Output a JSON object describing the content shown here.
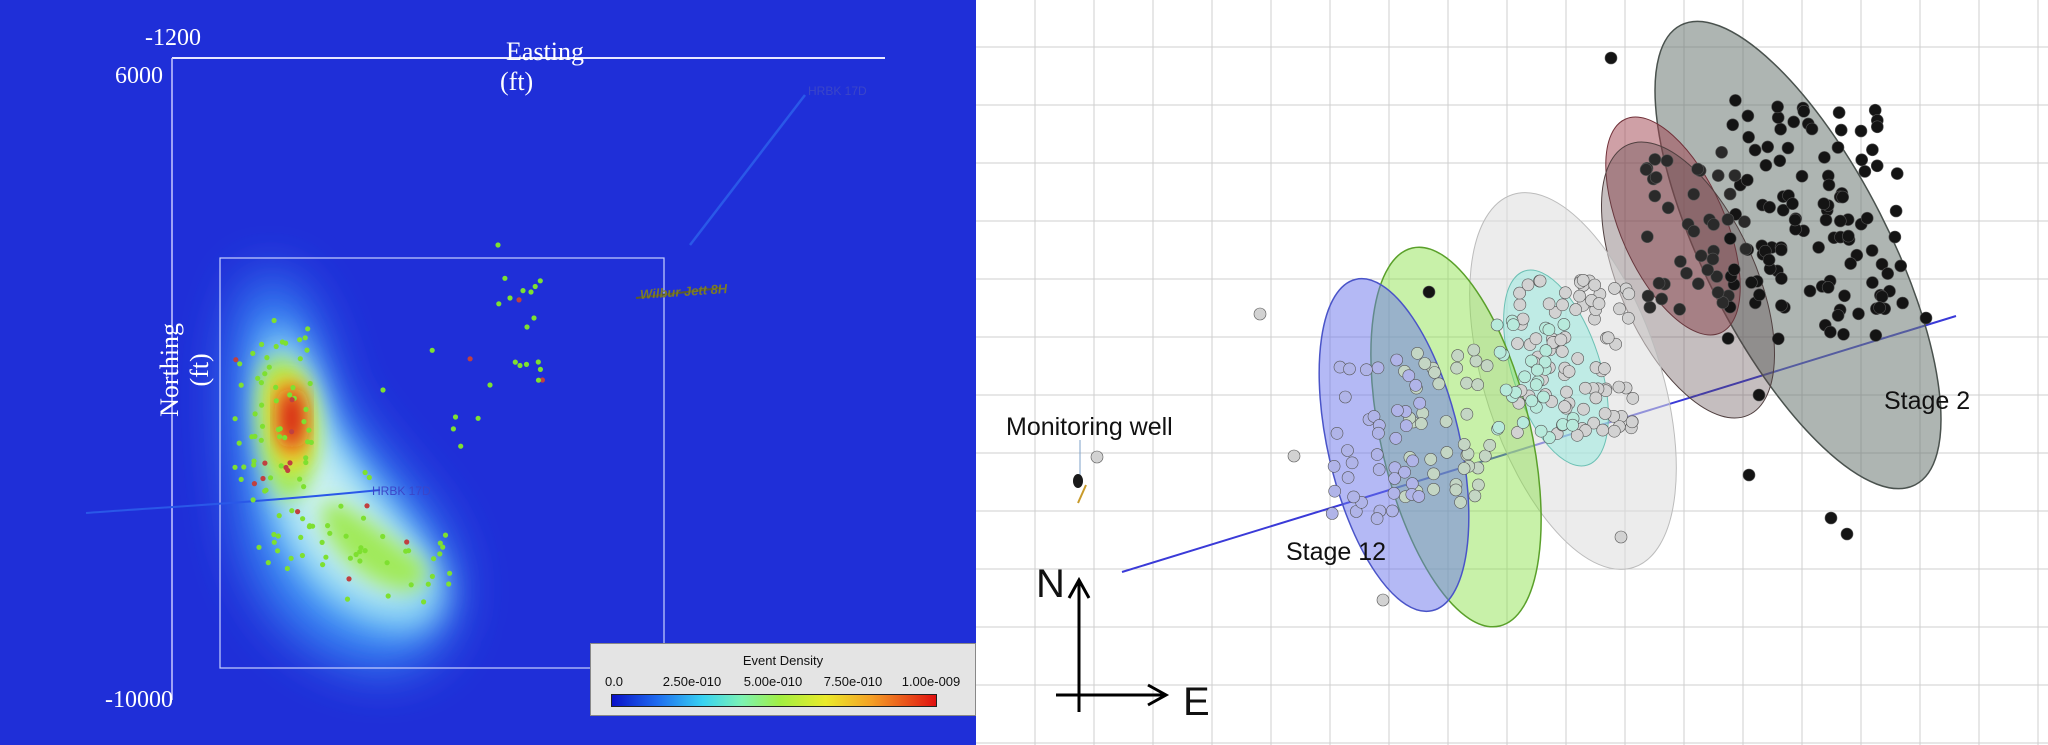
{
  "left_panel": {
    "axes": {
      "easting_min": "-1200",
      "northing_max": "6000",
      "northing_min": "-10000",
      "easting_title_line1": "Easting",
      "easting_title_line2": "(ft)",
      "northing_title_line1": "Northing",
      "northing_title_line2": "(ft)"
    },
    "well_labels": [
      "HRBK 17D",
      "HRBK 17D",
      "Wilbur Jett 8H"
    ],
    "legend": {
      "title": "Event Density",
      "ticks": [
        "0.0",
        "2.50e-010",
        "5.00e-010",
        "7.50e-010",
        "1.00e-009"
      ],
      "colors": [
        "#0a10c8",
        "#1e6cf0",
        "#38d2f2",
        "#7cf2b4",
        "#a2ee42",
        "#eaea2a",
        "#f4a026",
        "#e01010"
      ]
    }
  },
  "right_panel": {
    "labels": {
      "monitoring_well": "Monitoring well",
      "stage_first": "Stage 2",
      "stage_last": "Stage 12",
      "north": "N",
      "east": "E"
    },
    "colors": {
      "grid": "#c8c8c8",
      "wellbore": "#3a3ad8",
      "stage_2_fill": "#6c7872",
      "stage_2_events": "#111111",
      "stage_12_fill": "#6a74ec",
      "green_stage_fill": "#86e040",
      "white_stage_fill": "#dcdcdc",
      "cyan_stage_fill": "#8aeade",
      "red_stage_fill": "#a0424e"
    }
  }
}
